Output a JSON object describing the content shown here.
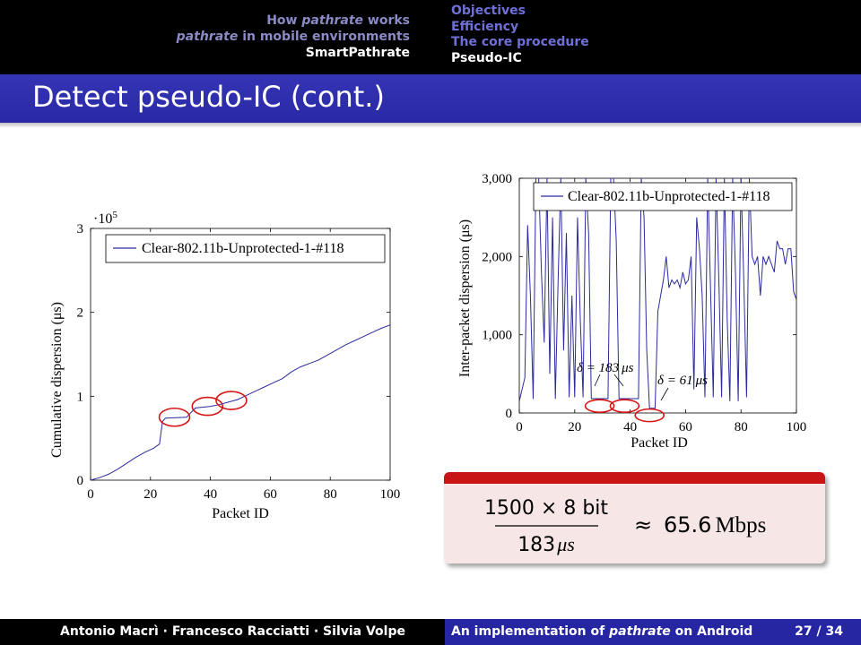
{
  "header": {
    "left_nav": [
      "How ",
      "pathrate",
      " works",
      "pathrate",
      " in mobile environments",
      "SmartPathrate"
    ],
    "right_nav": [
      "Objectives",
      "Efficiency",
      "The core procedure",
      "Pseudo-IC"
    ]
  },
  "frame_title": "Detect pseudo-IC (cont.)",
  "colors": {
    "header_bg": "#000000",
    "title_bg": "#2c2cab",
    "footer_left": "#000000",
    "footer_right": "#2626a2",
    "series": "#2b2b9e",
    "highlight": "#d81414",
    "box_bar": "#c81414",
    "box_bg": "#f7e6e6"
  },
  "chart_data": [
    {
      "type": "line",
      "title": "",
      "xlabel": "Packet ID",
      "ylabel": "Cumulative dispersion (μs)",
      "y_scale_label": "·10",
      "y_scale_exp": "5",
      "xlim": [
        0,
        100
      ],
      "ylim": [
        0,
        3
      ],
      "x_ticks": [
        "0",
        "20",
        "40",
        "60",
        "80",
        "100"
      ],
      "y_ticks": [
        "0",
        "1",
        "2",
        "3"
      ],
      "legend": "Clear-802.11b-Unprotected-1-#118",
      "legend_position": "top-left",
      "series": [
        {
          "name": "Clear-802.11b-Unprotected-1-#118",
          "x": [
            0,
            3,
            6,
            9,
            12,
            15,
            18,
            21,
            23,
            24,
            25,
            32,
            35,
            40,
            43,
            46,
            49,
            52,
            55,
            58,
            61,
            64,
            67,
            70,
            73,
            76,
            79,
            82,
            85,
            88,
            91,
            94,
            97,
            100
          ],
          "y": [
            0,
            0.03,
            0.07,
            0.13,
            0.2,
            0.27,
            0.33,
            0.38,
            0.43,
            0.7,
            0.74,
            0.75,
            0.86,
            0.88,
            0.9,
            0.93,
            0.96,
            1.01,
            1.06,
            1.11,
            1.16,
            1.21,
            1.29,
            1.35,
            1.39,
            1.43,
            1.49,
            1.55,
            1.61,
            1.66,
            1.71,
            1.76,
            1.81,
            1.85
          ]
        }
      ],
      "annotations": [
        {
          "type": "ellipse",
          "x": 28,
          "y": 0.75
        },
        {
          "type": "ellipse",
          "x": 39,
          "y": 0.88
        },
        {
          "type": "ellipse",
          "x": 47,
          "y": 0.95
        }
      ]
    },
    {
      "type": "line",
      "title": "",
      "xlabel": "Packet ID",
      "ylabel": "Inter-packet dispersion (μs)",
      "xlim": [
        0,
        100
      ],
      "ylim": [
        0,
        3000
      ],
      "x_ticks": [
        "0",
        "20",
        "40",
        "60",
        "80",
        "100"
      ],
      "y_ticks": [
        "0",
        "1,000",
        "2,000",
        "3,000"
      ],
      "legend": "Clear-802.11b-Unprotected-1-#118",
      "legend_position": "top-right",
      "series": [
        {
          "name": "Clear-802.11b-Unprotected-1-#118",
          "x": [
            0,
            2,
            3,
            4,
            5,
            6,
            7,
            8,
            9,
            10,
            11,
            12,
            13,
            14,
            15,
            16,
            17,
            18,
            19,
            20,
            21,
            22,
            23,
            24,
            25,
            26,
            27,
            28,
            29,
            30,
            31,
            32,
            33,
            34,
            35,
            36,
            37,
            38,
            39,
            40,
            41,
            42,
            43,
            44,
            45,
            46,
            47,
            48,
            49,
            50,
            51,
            52,
            53,
            54,
            55,
            56,
            57,
            58,
            59,
            60,
            61,
            62,
            63,
            64,
            65,
            66,
            67,
            68,
            69,
            70,
            71,
            72,
            73,
            74,
            75,
            76,
            77,
            78,
            79,
            80,
            81,
            82,
            83,
            84,
            85,
            86,
            87,
            88,
            89,
            90,
            91,
            92,
            93,
            94,
            95,
            96,
            97,
            98,
            99,
            100
          ],
          "y": [
            150,
            450,
            2400,
            1500,
            180,
            3000,
            3000,
            1800,
            900,
            3000,
            500,
            2500,
            180,
            1700,
            3000,
            800,
            2300,
            200,
            1500,
            200,
            2500,
            1200,
            200,
            3000,
            2300,
            183,
            183,
            183,
            183,
            183,
            183,
            183,
            3000,
            3000,
            2200,
            183,
            183,
            183,
            183,
            183,
            183,
            183,
            183,
            3000,
            2500,
            800,
            61,
            61,
            61,
            1300,
            1500,
            1700,
            2000,
            1600,
            1700,
            1650,
            1700,
            1600,
            1800,
            1650,
            1700,
            2000,
            300,
            2500,
            2100,
            1500,
            200,
            3000,
            1600,
            200,
            3000,
            1700,
            200,
            3000,
            1200,
            150,
            3000,
            1800,
            150,
            3000,
            1700,
            200,
            3000,
            2000,
            1900,
            2000,
            1500,
            2000,
            1900,
            2000,
            1900,
            1800,
            2200,
            2100,
            2100,
            1900,
            2100,
            2100,
            1550,
            1450
          ]
        }
      ],
      "annotations": [
        {
          "type": "ellipse",
          "x": 29,
          "y": 90
        },
        {
          "type": "ellipse",
          "x": 38,
          "y": 90
        },
        {
          "type": "ellipse",
          "x": 47,
          "y": -30
        }
      ],
      "labels": [
        {
          "delta": "δ = 183",
          "unit": "μs"
        },
        {
          "delta": "δ = 61",
          "unit": "μs"
        }
      ]
    }
  ],
  "box": {
    "numerator": "1500 × 8 bit",
    "denominator": "183",
    "denominator_unit": "μs",
    "approx": "≈",
    "value": "65.6",
    "unit": "Mbps"
  },
  "footer": {
    "authors": "Antonio Macrì · Francesco Racciatti · Silvia Volpe",
    "title_pre": "An implementation of ",
    "title_em": "pathrate",
    "title_post": " on Android",
    "page": "27 / 34"
  }
}
